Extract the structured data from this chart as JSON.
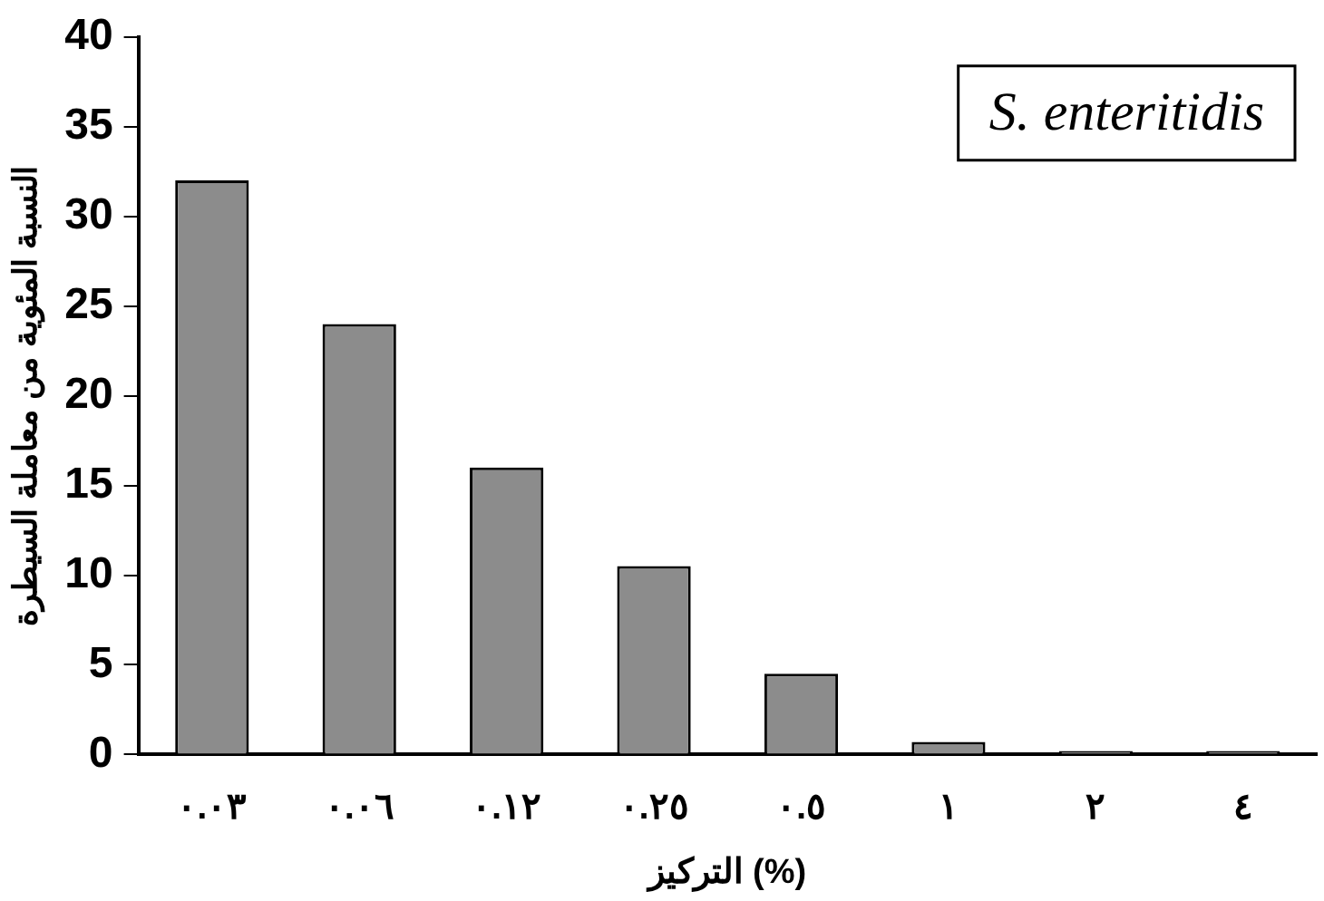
{
  "chart_data": {
    "type": "bar",
    "xlabel": "التركيز (%)",
    "ylabel": "النسبة المئوية من معاملة السيطرة",
    "categories": [
      "٠.٠٣",
      "٠.٠٦",
      "٠.١٢",
      "٠.٢٥",
      "٠.٥",
      "١",
      "٢",
      "٤"
    ],
    "values": [
      32,
      24,
      16,
      10.5,
      4.5,
      0.7,
      0.2,
      0.2
    ],
    "color": "#8c8c8c",
    "ylim": [
      0,
      40
    ],
    "yticks": [
      0,
      5,
      10,
      15,
      20,
      25,
      30,
      35,
      40
    ],
    "grid": false,
    "legend": false,
    "annotations": [
      "S. enteritidis"
    ]
  }
}
